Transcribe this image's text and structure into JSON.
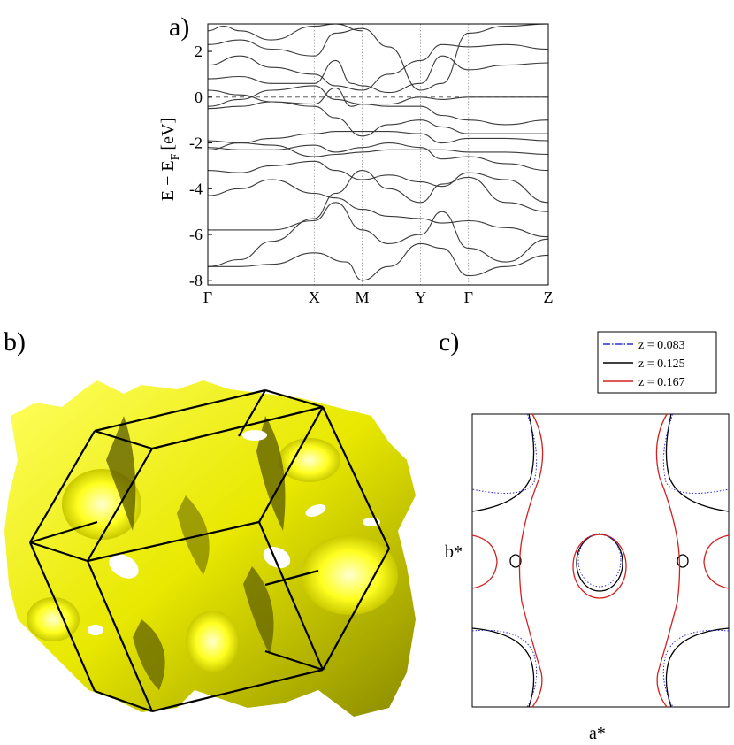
{
  "panels": {
    "a": "a)",
    "b": "b)",
    "c": "c)"
  },
  "chart_data": [
    {
      "type": "line",
      "panel": "a)",
      "ylabel": "E − E_F [eV]",
      "ylabel_main": "E − E",
      "ylabel_sub": "F",
      "ylabel_unit": "[eV]",
      "ylim": [
        -8.2,
        3.2
      ],
      "yticks": [
        -8,
        -6,
        -4,
        -2,
        0,
        2
      ],
      "xticks": [
        "Γ",
        "X",
        "M",
        "Y",
        "Γ",
        "Z"
      ],
      "xtick_pos": [
        0,
        1,
        1.45,
        2,
        2.45,
        3.2
      ],
      "xlim": [
        0,
        3.2
      ],
      "fermi_level": 0,
      "line_color": "#3a3a3a",
      "series": [
        {
          "x": [
            0,
            0.3,
            0.6,
            1,
            1.2,
            1.45,
            1.7,
            2,
            2.2,
            2.45,
            2.8,
            3.2
          ],
          "y": [
            -7.4,
            -7.1,
            -6.3,
            -5.3,
            -4.2,
            -3.2,
            -4.0,
            -4.6,
            -3.8,
            -3.5,
            -4.6,
            -5.0
          ]
        },
        {
          "x": [
            0,
            0.3,
            0.6,
            1,
            1.2,
            1.45,
            1.7,
            2,
            2.2,
            2.45,
            2.8,
            3.2
          ],
          "y": [
            -5.8,
            -5.8,
            -5.8,
            -5.4,
            -4.6,
            -5.8,
            -6.4,
            -6.0,
            -5.0,
            -6.6,
            -7.2,
            -6.2
          ]
        },
        {
          "x": [
            0,
            0.3,
            0.6,
            1,
            1.3,
            1.45,
            1.7,
            2,
            2.2,
            2.45,
            2.8,
            3.2
          ],
          "y": [
            -7.4,
            -7.4,
            -7.3,
            -6.8,
            -7.2,
            -8.0,
            -7.4,
            -6.4,
            -6.6,
            -7.8,
            -7.4,
            -6.9
          ]
        },
        {
          "x": [
            0,
            0.3,
            0.6,
            1,
            1.2,
            1.45,
            1.7,
            2,
            2.2,
            2.45,
            2.8,
            3.2
          ],
          "y": [
            -4.3,
            -4.0,
            -3.6,
            -4.2,
            -4.4,
            -4.9,
            -5.2,
            -5.3,
            -5.5,
            -5.4,
            -5.7,
            -6.1
          ]
        },
        {
          "x": [
            0,
            0.3,
            0.6,
            1,
            1.2,
            1.45,
            1.7,
            2,
            2.2,
            2.45,
            2.8,
            3.2
          ],
          "y": [
            -3.2,
            -3.3,
            -3.0,
            -2.8,
            -3.2,
            -3.6,
            -3.4,
            -3.7,
            -3.9,
            -3.3,
            -3.6,
            -4.6
          ]
        },
        {
          "x": [
            0,
            0.3,
            0.6,
            1,
            1.2,
            1.45,
            1.7,
            2,
            2.2,
            2.45,
            2.8,
            3.2
          ],
          "y": [
            -2.2,
            -2.3,
            -2.3,
            -2.1,
            -2.4,
            -2.2,
            -2.0,
            -2.2,
            -2.7,
            -2.6,
            -2.9,
            -3.2
          ]
        },
        {
          "x": [
            0,
            0.3,
            0.6,
            1,
            1.2,
            1.45,
            1.7,
            2,
            2.2,
            2.45,
            2.8,
            3.2
          ],
          "y": [
            -2.3,
            -2.0,
            -1.8,
            -1.6,
            -1.5,
            -1.5,
            -1.5,
            -1.6,
            -2.0,
            -1.8,
            -1.8,
            -1.9
          ]
        },
        {
          "x": [
            0,
            0.3,
            0.6,
            1,
            1.2,
            1.45,
            1.7,
            2,
            2.2,
            2.45,
            2.8,
            3.2
          ],
          "y": [
            -1.9,
            -2.0,
            -2.1,
            -2.6,
            -2.5,
            -2.4,
            -2.3,
            -2.3,
            -2.3,
            -2.4,
            -2.4,
            -2.5
          ]
        },
        {
          "x": [
            0,
            0.3,
            0.6,
            1,
            1.2,
            1.45,
            1.7,
            2,
            2.2,
            2.45,
            2.8,
            3.2
          ],
          "y": [
            -0.5,
            -0.4,
            -0.2,
            -0.4,
            -0.9,
            -1.7,
            -1.2,
            -1.0,
            -1.3,
            -1.6,
            -1.6,
            -1.6
          ]
        },
        {
          "x": [
            0,
            0.3,
            0.6,
            1,
            1.2,
            1.45,
            1.7,
            2,
            2.2,
            2.45,
            2.8,
            3.2
          ],
          "y": [
            -0.4,
            -0.1,
            0.3,
            0.5,
            -0.1,
            -0.3,
            -0.4,
            -0.4,
            -0.8,
            -1.0,
            -1.2,
            -1.0
          ]
        },
        {
          "x": [
            0,
            0.3,
            0.6,
            1,
            1.2,
            1.35,
            1.45,
            1.7,
            2,
            2.2,
            2.45,
            2.8,
            3.2
          ],
          "y": [
            0.3,
            0.1,
            -0.2,
            -0.3,
            0.4,
            -0.4,
            -0.3,
            -0.3,
            0.0,
            -0.1,
            0.0,
            0.0,
            0.0
          ]
        },
        {
          "x": [
            0,
            0.3,
            0.6,
            1,
            1.2,
            1.35,
            1.45,
            1.7,
            2,
            2.2,
            2.45,
            2.8,
            3.2
          ],
          "y": [
            0.8,
            0.9,
            0.6,
            0.6,
            1.6,
            0.6,
            0.5,
            0.2,
            0.6,
            1.8,
            1.2,
            1.4,
            1.5
          ]
        },
        {
          "x": [
            0,
            0.3,
            0.6,
            1,
            1.2,
            1.45,
            1.7,
            2,
            2.2,
            2.45,
            2.8,
            3.2
          ],
          "y": [
            1.4,
            1.8,
            1.3,
            1.0,
            0.5,
            0.3,
            1.0,
            1.6,
            2.3,
            2.2,
            2.3,
            2.1
          ]
        },
        {
          "x": [
            0,
            0.3,
            0.6,
            1,
            1.2,
            1.45,
            1.7,
            2,
            2.2,
            2.45,
            2.8,
            3.2
          ],
          "y": [
            2.3,
            2.5,
            2.1,
            1.8,
            2.8,
            3.0,
            2.2,
            0.3,
            0.6,
            2.8,
            3.1,
            3.2
          ]
        },
        {
          "x": [
            0,
            0.15,
            0.3,
            0.6,
            1,
            1.2,
            1.45
          ],
          "y": [
            2.9,
            3.1,
            2.9,
            2.5,
            3.1,
            3.2,
            2.9
          ]
        }
      ]
    },
    {
      "type": "contour",
      "panel": "c)",
      "xlabel": "a*",
      "ylabel": "b*",
      "legend_position": "top-right",
      "legend": [
        {
          "label": "z = 0.083",
          "color": "#2a2ad8",
          "style": "dash-dot"
        },
        {
          "label": "z = 0.125",
          "color": "#000000",
          "style": "solid"
        },
        {
          "label": "z = 0.167",
          "color": "#d42020",
          "style": "solid"
        }
      ]
    }
  ]
}
